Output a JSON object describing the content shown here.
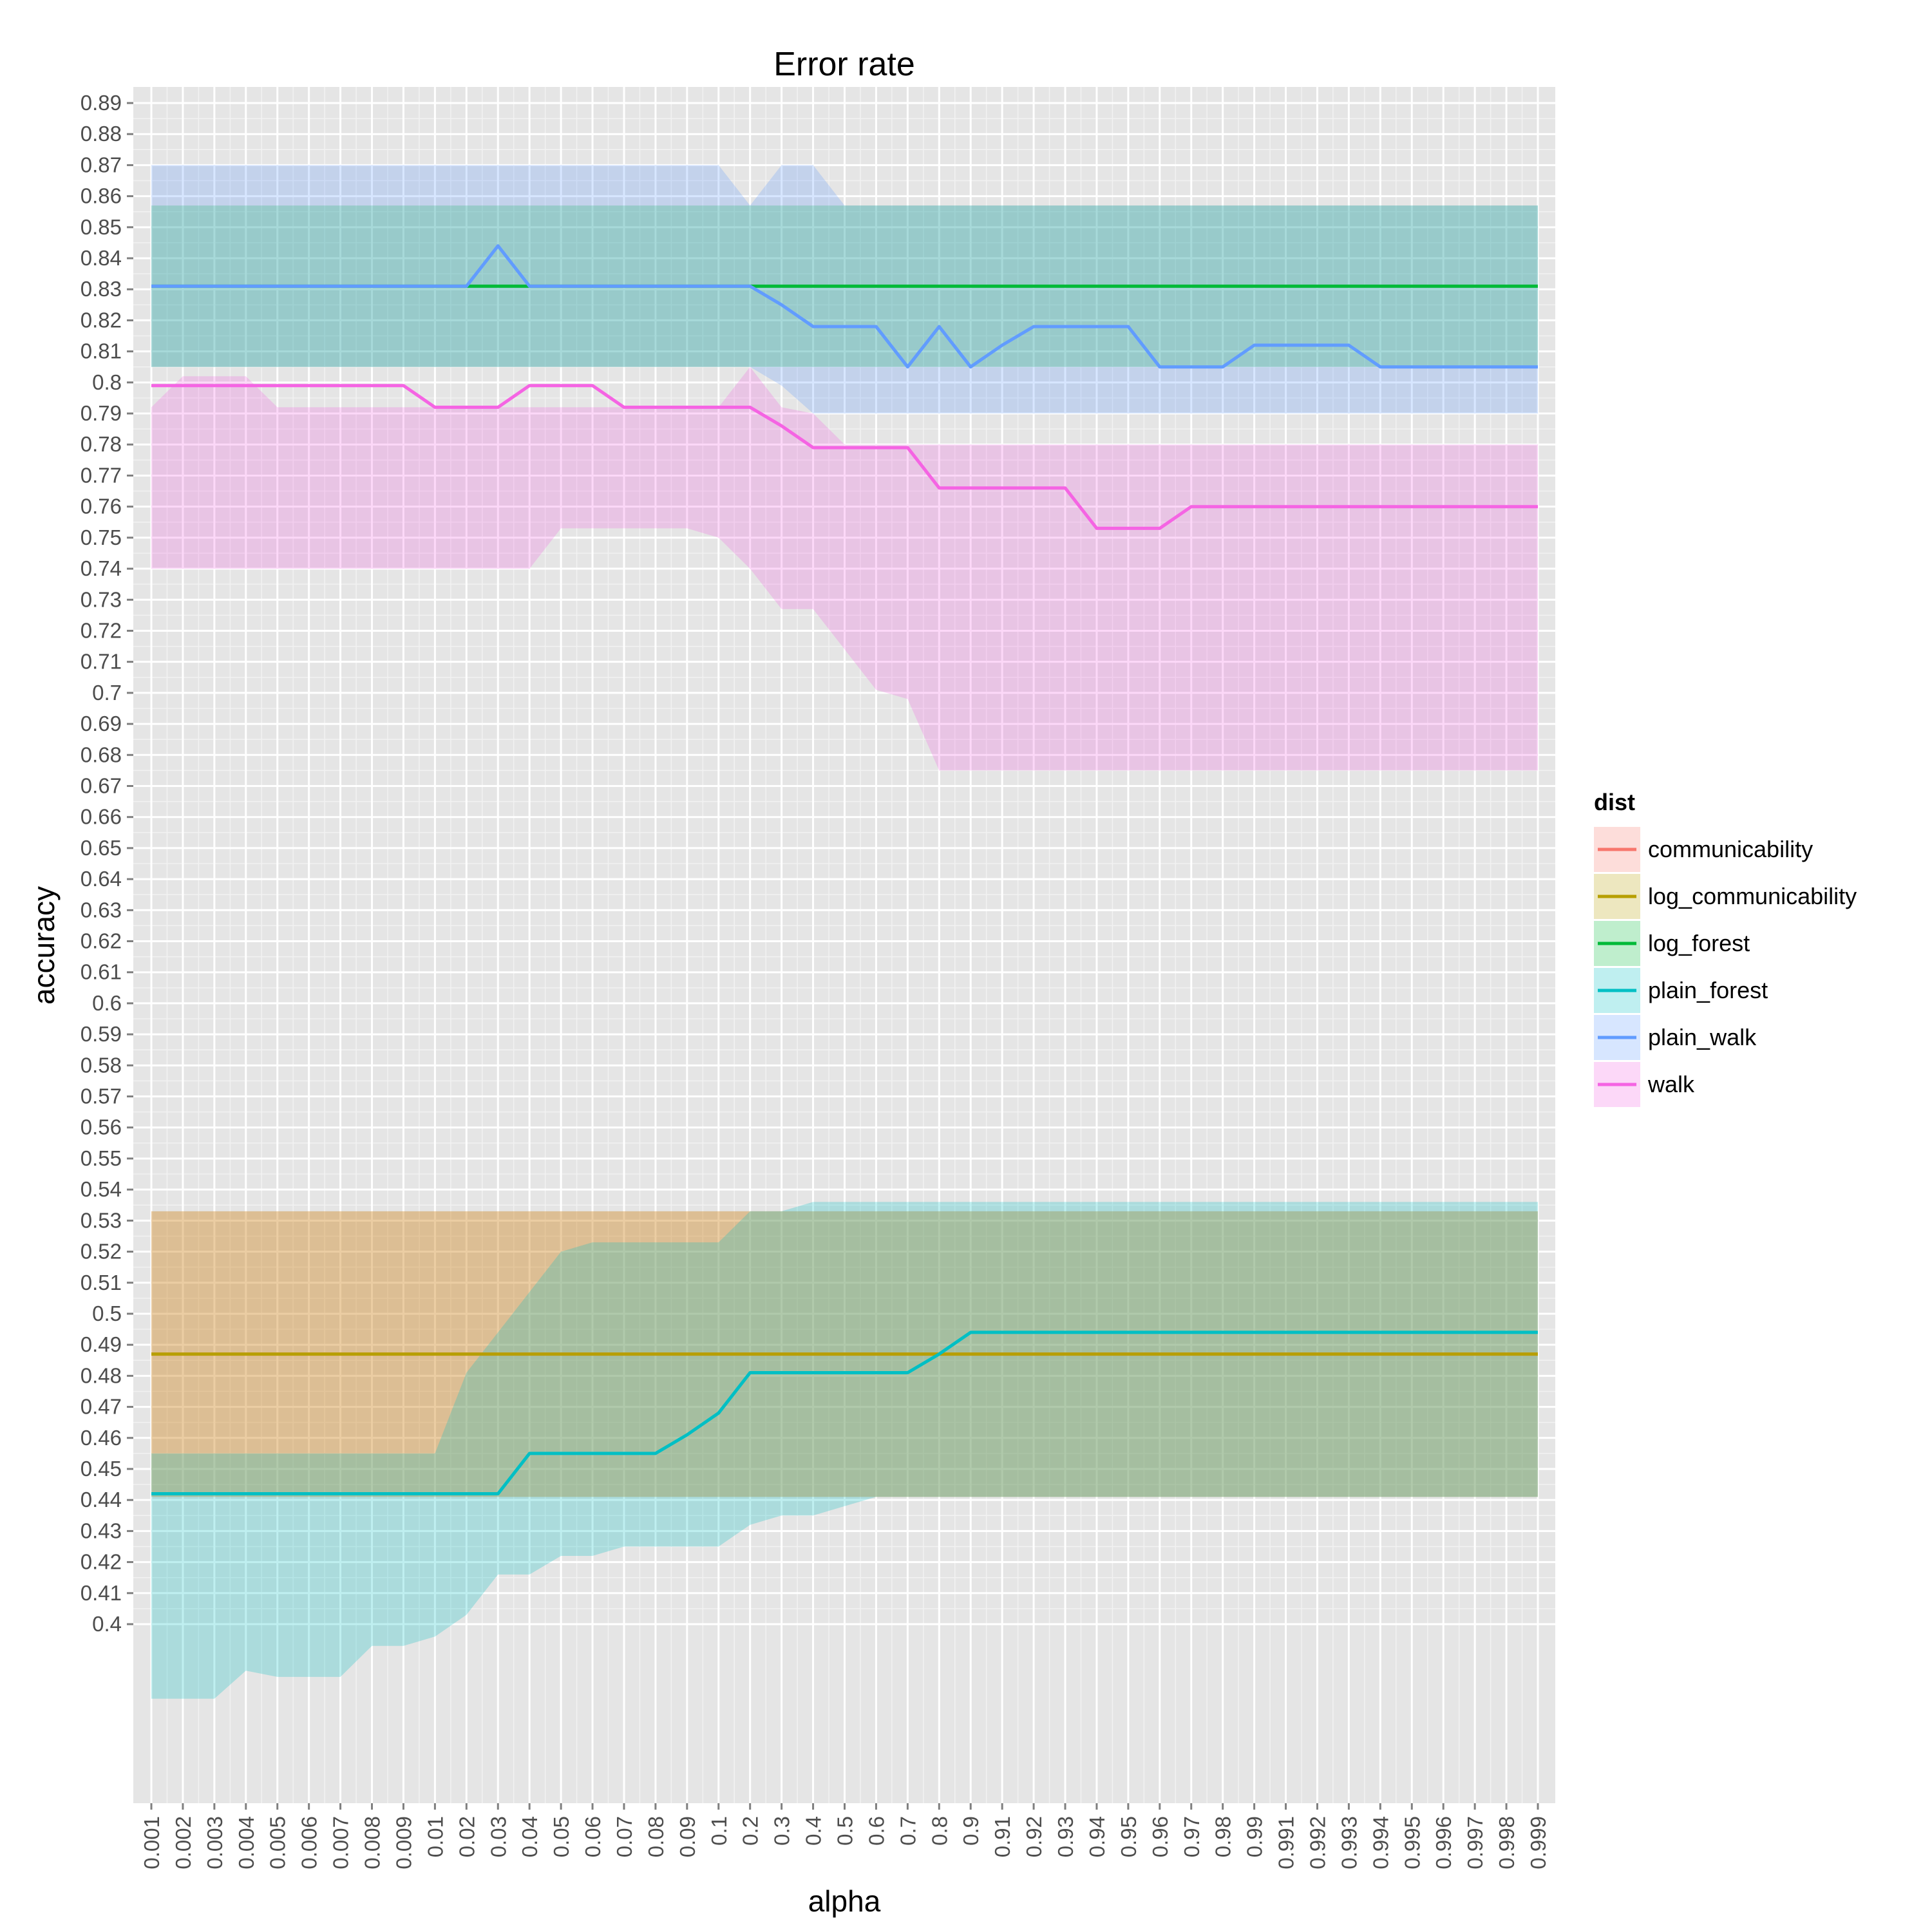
{
  "chart_data": {
    "type": "line",
    "title": "Error rate",
    "xlabel": "alpha",
    "ylabel": "accuracy",
    "x": [
      "0.001",
      "0.002",
      "0.003",
      "0.004",
      "0.005",
      "0.006",
      "0.007",
      "0.008",
      "0.009",
      "0.01",
      "0.02",
      "0.03",
      "0.04",
      "0.05",
      "0.06",
      "0.07",
      "0.08",
      "0.09",
      "0.1",
      "0.2",
      "0.3",
      "0.4",
      "0.5",
      "0.6",
      "0.7",
      "0.8",
      "0.9",
      "0.91",
      "0.92",
      "0.93",
      "0.94",
      "0.95",
      "0.96",
      "0.97",
      "0.98",
      "0.99",
      "0.991",
      "0.992",
      "0.993",
      "0.994",
      "0.995",
      "0.996",
      "0.997",
      "0.998",
      "0.999"
    ],
    "y_ticks": [
      0.4,
      0.41,
      0.42,
      0.43,
      0.44,
      0.45,
      0.46,
      0.47,
      0.48,
      0.49,
      0.5,
      0.51,
      0.52,
      0.53,
      0.54,
      0.55,
      0.56,
      0.57,
      0.58,
      0.59,
      0.6,
      0.61,
      0.62,
      0.63,
      0.64,
      0.65,
      0.66,
      0.67,
      0.68,
      0.69,
      0.7,
      0.71,
      0.72,
      0.73,
      0.74,
      0.75,
      0.76,
      0.77,
      0.78,
      0.79,
      0.8,
      0.81,
      0.82,
      0.83,
      0.84,
      0.85,
      0.86,
      0.87,
      0.88,
      0.89
    ],
    "y_tick_labels": [
      "0.4",
      "0.41",
      "0.42",
      "0.43",
      "0.44",
      "0.45",
      "0.46",
      "0.47",
      "0.48",
      "0.49",
      "0.5",
      "0.51",
      "0.52",
      "0.53",
      "0.54",
      "0.55",
      "0.56",
      "0.57",
      "0.58",
      "0.59",
      "0.6",
      "0.61",
      "0.62",
      "0.63",
      "0.64",
      "0.65",
      "0.66",
      "0.67",
      "0.68",
      "0.69",
      "0.7",
      "0.71",
      "0.72",
      "0.73",
      "0.74",
      "0.75",
      "0.76",
      "0.77",
      "0.78",
      "0.79",
      "0.8",
      "0.81",
      "0.82",
      "0.83",
      "0.84",
      "0.85",
      "0.86",
      "0.87",
      "0.88",
      "0.89"
    ],
    "ylim": [
      0.34,
      0.895
    ],
    "grid": true,
    "legend": {
      "title": "dist",
      "placement": "right"
    },
    "series": [
      {
        "name": "communicability",
        "color": "#F8766D",
        "values": [
          0.487,
          0.487,
          0.487,
          0.487,
          0.487,
          0.487,
          0.487,
          0.487,
          0.487,
          0.487,
          0.487,
          0.487,
          0.487,
          0.487,
          0.487,
          0.487,
          0.487,
          0.487,
          0.487,
          0.487,
          0.487,
          0.487,
          0.487,
          0.487,
          0.487,
          0.487,
          0.487,
          0.487,
          0.487,
          0.487,
          0.487,
          0.487,
          0.487,
          0.487,
          0.487,
          0.487,
          0.487,
          0.487,
          0.487,
          0.487,
          0.487,
          0.487,
          0.487,
          0.487,
          0.487
        ],
        "lower": [
          0.441,
          0.441,
          0.441,
          0.441,
          0.441,
          0.441,
          0.441,
          0.441,
          0.441,
          0.441,
          0.441,
          0.441,
          0.441,
          0.441,
          0.441,
          0.441,
          0.441,
          0.441,
          0.441,
          0.441,
          0.441,
          0.441,
          0.441,
          0.441,
          0.441,
          0.441,
          0.441,
          0.441,
          0.441,
          0.441,
          0.441,
          0.441,
          0.441,
          0.441,
          0.441,
          0.441,
          0.441,
          0.441,
          0.441,
          0.441,
          0.441,
          0.441,
          0.441,
          0.441,
          0.441
        ],
        "upper": [
          0.533,
          0.533,
          0.533,
          0.533,
          0.533,
          0.533,
          0.533,
          0.533,
          0.533,
          0.533,
          0.533,
          0.533,
          0.533,
          0.533,
          0.533,
          0.533,
          0.533,
          0.533,
          0.533,
          0.533,
          0.533,
          0.533,
          0.533,
          0.533,
          0.533,
          0.533,
          0.533,
          0.533,
          0.533,
          0.533,
          0.533,
          0.533,
          0.533,
          0.533,
          0.533,
          0.533,
          0.533,
          0.533,
          0.533,
          0.533,
          0.533,
          0.533,
          0.533,
          0.533,
          0.533
        ]
      },
      {
        "name": "log_communicability",
        "color": "#B79F00",
        "values": [
          0.487,
          0.487,
          0.487,
          0.487,
          0.487,
          0.487,
          0.487,
          0.487,
          0.487,
          0.487,
          0.487,
          0.487,
          0.487,
          0.487,
          0.487,
          0.487,
          0.487,
          0.487,
          0.487,
          0.487,
          0.487,
          0.487,
          0.487,
          0.487,
          0.487,
          0.487,
          0.487,
          0.487,
          0.487,
          0.487,
          0.487,
          0.487,
          0.487,
          0.487,
          0.487,
          0.487,
          0.487,
          0.487,
          0.487,
          0.487,
          0.487,
          0.487,
          0.487,
          0.487,
          0.487
        ],
        "lower": [
          0.441,
          0.441,
          0.441,
          0.441,
          0.441,
          0.441,
          0.441,
          0.441,
          0.441,
          0.441,
          0.441,
          0.441,
          0.441,
          0.441,
          0.441,
          0.441,
          0.441,
          0.441,
          0.441,
          0.441,
          0.441,
          0.441,
          0.441,
          0.441,
          0.441,
          0.441,
          0.441,
          0.441,
          0.441,
          0.441,
          0.441,
          0.441,
          0.441,
          0.441,
          0.441,
          0.441,
          0.441,
          0.441,
          0.441,
          0.441,
          0.441,
          0.441,
          0.441,
          0.441,
          0.441
        ],
        "upper": [
          0.533,
          0.533,
          0.533,
          0.533,
          0.533,
          0.533,
          0.533,
          0.533,
          0.533,
          0.533,
          0.533,
          0.533,
          0.533,
          0.533,
          0.533,
          0.533,
          0.533,
          0.533,
          0.533,
          0.533,
          0.533,
          0.533,
          0.533,
          0.533,
          0.533,
          0.533,
          0.533,
          0.533,
          0.533,
          0.533,
          0.533,
          0.533,
          0.533,
          0.533,
          0.533,
          0.533,
          0.533,
          0.533,
          0.533,
          0.533,
          0.533,
          0.533,
          0.533,
          0.533,
          0.533
        ]
      },
      {
        "name": "log_forest",
        "color": "#00BA38",
        "values": [
          0.831,
          0.831,
          0.831,
          0.831,
          0.831,
          0.831,
          0.831,
          0.831,
          0.831,
          0.831,
          0.831,
          0.831,
          0.831,
          0.831,
          0.831,
          0.831,
          0.831,
          0.831,
          0.831,
          0.831,
          0.831,
          0.831,
          0.831,
          0.831,
          0.831,
          0.831,
          0.831,
          0.831,
          0.831,
          0.831,
          0.831,
          0.831,
          0.831,
          0.831,
          0.831,
          0.831,
          0.831,
          0.831,
          0.831,
          0.831,
          0.831,
          0.831,
          0.831,
          0.831,
          0.831
        ],
        "lower": [
          0.805,
          0.805,
          0.805,
          0.805,
          0.805,
          0.805,
          0.805,
          0.805,
          0.805,
          0.805,
          0.805,
          0.805,
          0.805,
          0.805,
          0.805,
          0.805,
          0.805,
          0.805,
          0.805,
          0.805,
          0.805,
          0.805,
          0.805,
          0.805,
          0.805,
          0.805,
          0.805,
          0.805,
          0.805,
          0.805,
          0.805,
          0.805,
          0.805,
          0.805,
          0.805,
          0.805,
          0.805,
          0.805,
          0.805,
          0.805,
          0.805,
          0.805,
          0.805,
          0.805,
          0.805
        ],
        "upper": [
          0.857,
          0.857,
          0.857,
          0.857,
          0.857,
          0.857,
          0.857,
          0.857,
          0.857,
          0.857,
          0.857,
          0.857,
          0.857,
          0.857,
          0.857,
          0.857,
          0.857,
          0.857,
          0.857,
          0.857,
          0.857,
          0.857,
          0.857,
          0.857,
          0.857,
          0.857,
          0.857,
          0.857,
          0.857,
          0.857,
          0.857,
          0.857,
          0.857,
          0.857,
          0.857,
          0.857,
          0.857,
          0.857,
          0.857,
          0.857,
          0.857,
          0.857,
          0.857,
          0.857,
          0.857
        ]
      },
      {
        "name": "plain_forest",
        "color": "#00BFC4",
        "values": [
          0.442,
          0.442,
          0.442,
          0.442,
          0.442,
          0.442,
          0.442,
          0.442,
          0.442,
          0.442,
          0.442,
          0.442,
          0.455,
          0.455,
          0.455,
          0.455,
          0.455,
          0.461,
          0.468,
          0.481,
          0.481,
          0.481,
          0.481,
          0.481,
          0.481,
          0.487,
          0.494,
          0.494,
          0.494,
          0.494,
          0.494,
          0.494,
          0.494,
          0.494,
          0.494,
          0.494,
          0.494,
          0.494,
          0.494,
          0.494,
          0.494,
          0.494,
          0.494,
          0.494,
          0.494
        ],
        "lower": [
          0.376,
          0.376,
          0.376,
          0.385,
          0.383,
          0.383,
          0.383,
          0.393,
          0.393,
          0.396,
          0.403,
          0.416,
          0.416,
          0.422,
          0.422,
          0.425,
          0.425,
          0.425,
          0.425,
          0.432,
          0.435,
          0.435,
          0.438,
          0.441,
          0.441,
          0.441,
          0.441,
          0.441,
          0.441,
          0.441,
          0.441,
          0.441,
          0.441,
          0.441,
          0.441,
          0.441,
          0.441,
          0.441,
          0.441,
          0.441,
          0.441,
          0.441,
          0.441,
          0.441,
          0.441
        ],
        "upper": [
          0.455,
          0.455,
          0.455,
          0.455,
          0.455,
          0.455,
          0.455,
          0.455,
          0.455,
          0.455,
          0.481,
          0.494,
          0.507,
          0.52,
          0.523,
          0.523,
          0.523,
          0.523,
          0.523,
          0.533,
          0.533,
          0.536,
          0.536,
          0.536,
          0.536,
          0.536,
          0.536,
          0.536,
          0.536,
          0.536,
          0.536,
          0.536,
          0.536,
          0.536,
          0.536,
          0.536,
          0.536,
          0.536,
          0.536,
          0.536,
          0.536,
          0.536,
          0.536,
          0.536,
          0.536
        ]
      },
      {
        "name": "plain_walk",
        "color": "#619CFF",
        "values": [
          0.831,
          0.831,
          0.831,
          0.831,
          0.831,
          0.831,
          0.831,
          0.831,
          0.831,
          0.831,
          0.831,
          0.844,
          0.831,
          0.831,
          0.831,
          0.831,
          0.831,
          0.831,
          0.831,
          0.831,
          0.825,
          0.818,
          0.818,
          0.818,
          0.805,
          0.818,
          0.805,
          0.812,
          0.818,
          0.818,
          0.818,
          0.818,
          0.805,
          0.805,
          0.805,
          0.812,
          0.812,
          0.812,
          0.812,
          0.805,
          0.805,
          0.805,
          0.805,
          0.805,
          0.805
        ],
        "lower": [
          0.805,
          0.805,
          0.805,
          0.805,
          0.805,
          0.805,
          0.805,
          0.805,
          0.805,
          0.805,
          0.805,
          0.805,
          0.805,
          0.805,
          0.805,
          0.805,
          0.805,
          0.805,
          0.805,
          0.805,
          0.799,
          0.79,
          0.79,
          0.79,
          0.79,
          0.79,
          0.79,
          0.79,
          0.79,
          0.79,
          0.79,
          0.79,
          0.79,
          0.79,
          0.79,
          0.79,
          0.79,
          0.79,
          0.79,
          0.79,
          0.79,
          0.79,
          0.79,
          0.79,
          0.79
        ],
        "upper": [
          0.87,
          0.87,
          0.87,
          0.87,
          0.87,
          0.87,
          0.87,
          0.87,
          0.87,
          0.87,
          0.87,
          0.87,
          0.87,
          0.87,
          0.87,
          0.87,
          0.87,
          0.87,
          0.87,
          0.857,
          0.87,
          0.87,
          0.857,
          0.857,
          0.857,
          0.857,
          0.857,
          0.857,
          0.857,
          0.857,
          0.857,
          0.857,
          0.857,
          0.857,
          0.857,
          0.857,
          0.857,
          0.857,
          0.857,
          0.857,
          0.857,
          0.857,
          0.857,
          0.857,
          0.857
        ]
      },
      {
        "name": "walk",
        "color": "#F564E3",
        "values": [
          0.799,
          0.799,
          0.799,
          0.799,
          0.799,
          0.799,
          0.799,
          0.799,
          0.799,
          0.792,
          0.792,
          0.792,
          0.799,
          0.799,
          0.799,
          0.792,
          0.792,
          0.792,
          0.792,
          0.792,
          0.786,
          0.779,
          0.779,
          0.779,
          0.779,
          0.766,
          0.766,
          0.766,
          0.766,
          0.766,
          0.753,
          0.753,
          0.753,
          0.76,
          0.76,
          0.76,
          0.76,
          0.76,
          0.76,
          0.76,
          0.76,
          0.76,
          0.76,
          0.76,
          0.76
        ],
        "lower": [
          0.74,
          0.74,
          0.74,
          0.74,
          0.74,
          0.74,
          0.74,
          0.74,
          0.74,
          0.74,
          0.74,
          0.74,
          0.74,
          0.753,
          0.753,
          0.753,
          0.753,
          0.753,
          0.75,
          0.74,
          0.727,
          0.727,
          0.714,
          0.701,
          0.698,
          0.675,
          0.675,
          0.675,
          0.675,
          0.675,
          0.675,
          0.675,
          0.675,
          0.675,
          0.675,
          0.675,
          0.675,
          0.675,
          0.675,
          0.675,
          0.675,
          0.675,
          0.675,
          0.675,
          0.675
        ],
        "upper": [
          0.792,
          0.802,
          0.802,
          0.802,
          0.792,
          0.792,
          0.792,
          0.792,
          0.792,
          0.792,
          0.792,
          0.792,
          0.792,
          0.792,
          0.792,
          0.792,
          0.792,
          0.792,
          0.792,
          0.805,
          0.792,
          0.79,
          0.78,
          0.78,
          0.78,
          0.78,
          0.78,
          0.78,
          0.78,
          0.78,
          0.78,
          0.78,
          0.78,
          0.78,
          0.78,
          0.78,
          0.78,
          0.78,
          0.78,
          0.78,
          0.78,
          0.78,
          0.78,
          0.78,
          0.78
        ]
      }
    ]
  }
}
